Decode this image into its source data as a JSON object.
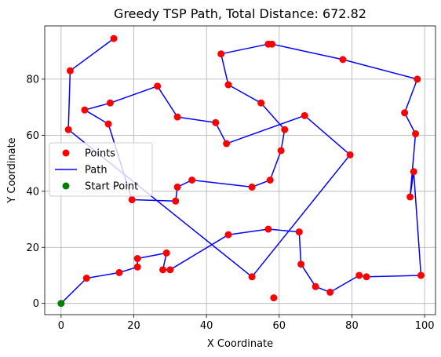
{
  "chart_data": {
    "type": "scatter",
    "title": "Greedy TSP Path, Total Distance: 672.82",
    "xlabel": "X Coordinate",
    "ylabel": "Y Coordinate",
    "xlim": [
      -4.5,
      103
    ],
    "ylim": [
      -4,
      99
    ],
    "xticks": [
      0,
      20,
      40,
      60,
      80,
      100
    ],
    "yticks": [
      0,
      20,
      40,
      60,
      80
    ],
    "grid": true,
    "legend_position": "center-left",
    "colors": {
      "points": "#ff0000",
      "path": "#0000ff",
      "start": "#008000"
    },
    "legend": [
      {
        "label": "Points",
        "kind": "marker",
        "color": "#ff0000"
      },
      {
        "label": "Path",
        "kind": "line",
        "color": "#0000ff"
      },
      {
        "label": "Start Point",
        "kind": "marker",
        "color": "#008000"
      }
    ],
    "start_point": {
      "x": 0,
      "y": 0
    },
    "path": [
      [
        0,
        0
      ],
      [
        7,
        9
      ],
      [
        16,
        11
      ],
      [
        21,
        13
      ],
      [
        21,
        16
      ],
      [
        29,
        18
      ],
      [
        28,
        12
      ],
      [
        30,
        12
      ],
      [
        46,
        24.5
      ],
      [
        57,
        26.5
      ],
      [
        65.5,
        25.5
      ],
      [
        66,
        14
      ],
      [
        70,
        6
      ],
      [
        74,
        4
      ],
      [
        82,
        10
      ],
      [
        84,
        9.5
      ],
      [
        99,
        10
      ],
      [
        97,
        47
      ],
      [
        96,
        38
      ],
      [
        97.5,
        60.5
      ],
      [
        94.5,
        68
      ],
      [
        98,
        80
      ],
      [
        77.5,
        87
      ],
      [
        58,
        92.5
      ],
      [
        57,
        92.5
      ],
      [
        44,
        89
      ],
      [
        46,
        78
      ],
      [
        55,
        71.5
      ],
      [
        61.5,
        62
      ],
      [
        60.5,
        54.5
      ],
      [
        57.5,
        44
      ],
      [
        52.5,
        41.5
      ],
      [
        36,
        44
      ],
      [
        32,
        41.5
      ],
      [
        31.5,
        36.5
      ],
      [
        19.5,
        37
      ],
      [
        13,
        64
      ],
      [
        6.5,
        69
      ],
      [
        13.5,
        71.5
      ],
      [
        26.5,
        77.5
      ],
      [
        32,
        66.5
      ],
      [
        42.5,
        64.5
      ],
      [
        45.5,
        57
      ],
      [
        67,
        67
      ],
      [
        79.5,
        53
      ],
      [
        52.5,
        9.5
      ],
      [
        2,
        62
      ],
      [
        2.5,
        83
      ],
      [
        14.5,
        94.5
      ]
    ],
    "points": [
      [
        7,
        9
      ],
      [
        16,
        11
      ],
      [
        21,
        13
      ],
      [
        21,
        16
      ],
      [
        29,
        18
      ],
      [
        28,
        12
      ],
      [
        30,
        12
      ],
      [
        46,
        24.5
      ],
      [
        57,
        26.5
      ],
      [
        65.5,
        25.5
      ],
      [
        66,
        14
      ],
      [
        70,
        6
      ],
      [
        74,
        4
      ],
      [
        82,
        10
      ],
      [
        84,
        9.5
      ],
      [
        99,
        10
      ],
      [
        97,
        47
      ],
      [
        96,
        38
      ],
      [
        97.5,
        60.5
      ],
      [
        94.5,
        68
      ],
      [
        98,
        80
      ],
      [
        77.5,
        87
      ],
      [
        58,
        92.5
      ],
      [
        57,
        92.5
      ],
      [
        44,
        89
      ],
      [
        46,
        78
      ],
      [
        55,
        71.5
      ],
      [
        61.5,
        62
      ],
      [
        60.5,
        54.5
      ],
      [
        57.5,
        44
      ],
      [
        52.5,
        41.5
      ],
      [
        36,
        44
      ],
      [
        32,
        41.5
      ],
      [
        31.5,
        36.5
      ],
      [
        19.5,
        37
      ],
      [
        13,
        64
      ],
      [
        6.5,
        69
      ],
      [
        13.5,
        71.5
      ],
      [
        26.5,
        77.5
      ],
      [
        32,
        66.5
      ],
      [
        42.5,
        64.5
      ],
      [
        45.5,
        57
      ],
      [
        67,
        67
      ],
      [
        79.5,
        53
      ],
      [
        52.5,
        9.5
      ],
      [
        2,
        62
      ],
      [
        2.5,
        83
      ],
      [
        14.5,
        94.5
      ],
      [
        58.5,
        2
      ]
    ]
  }
}
